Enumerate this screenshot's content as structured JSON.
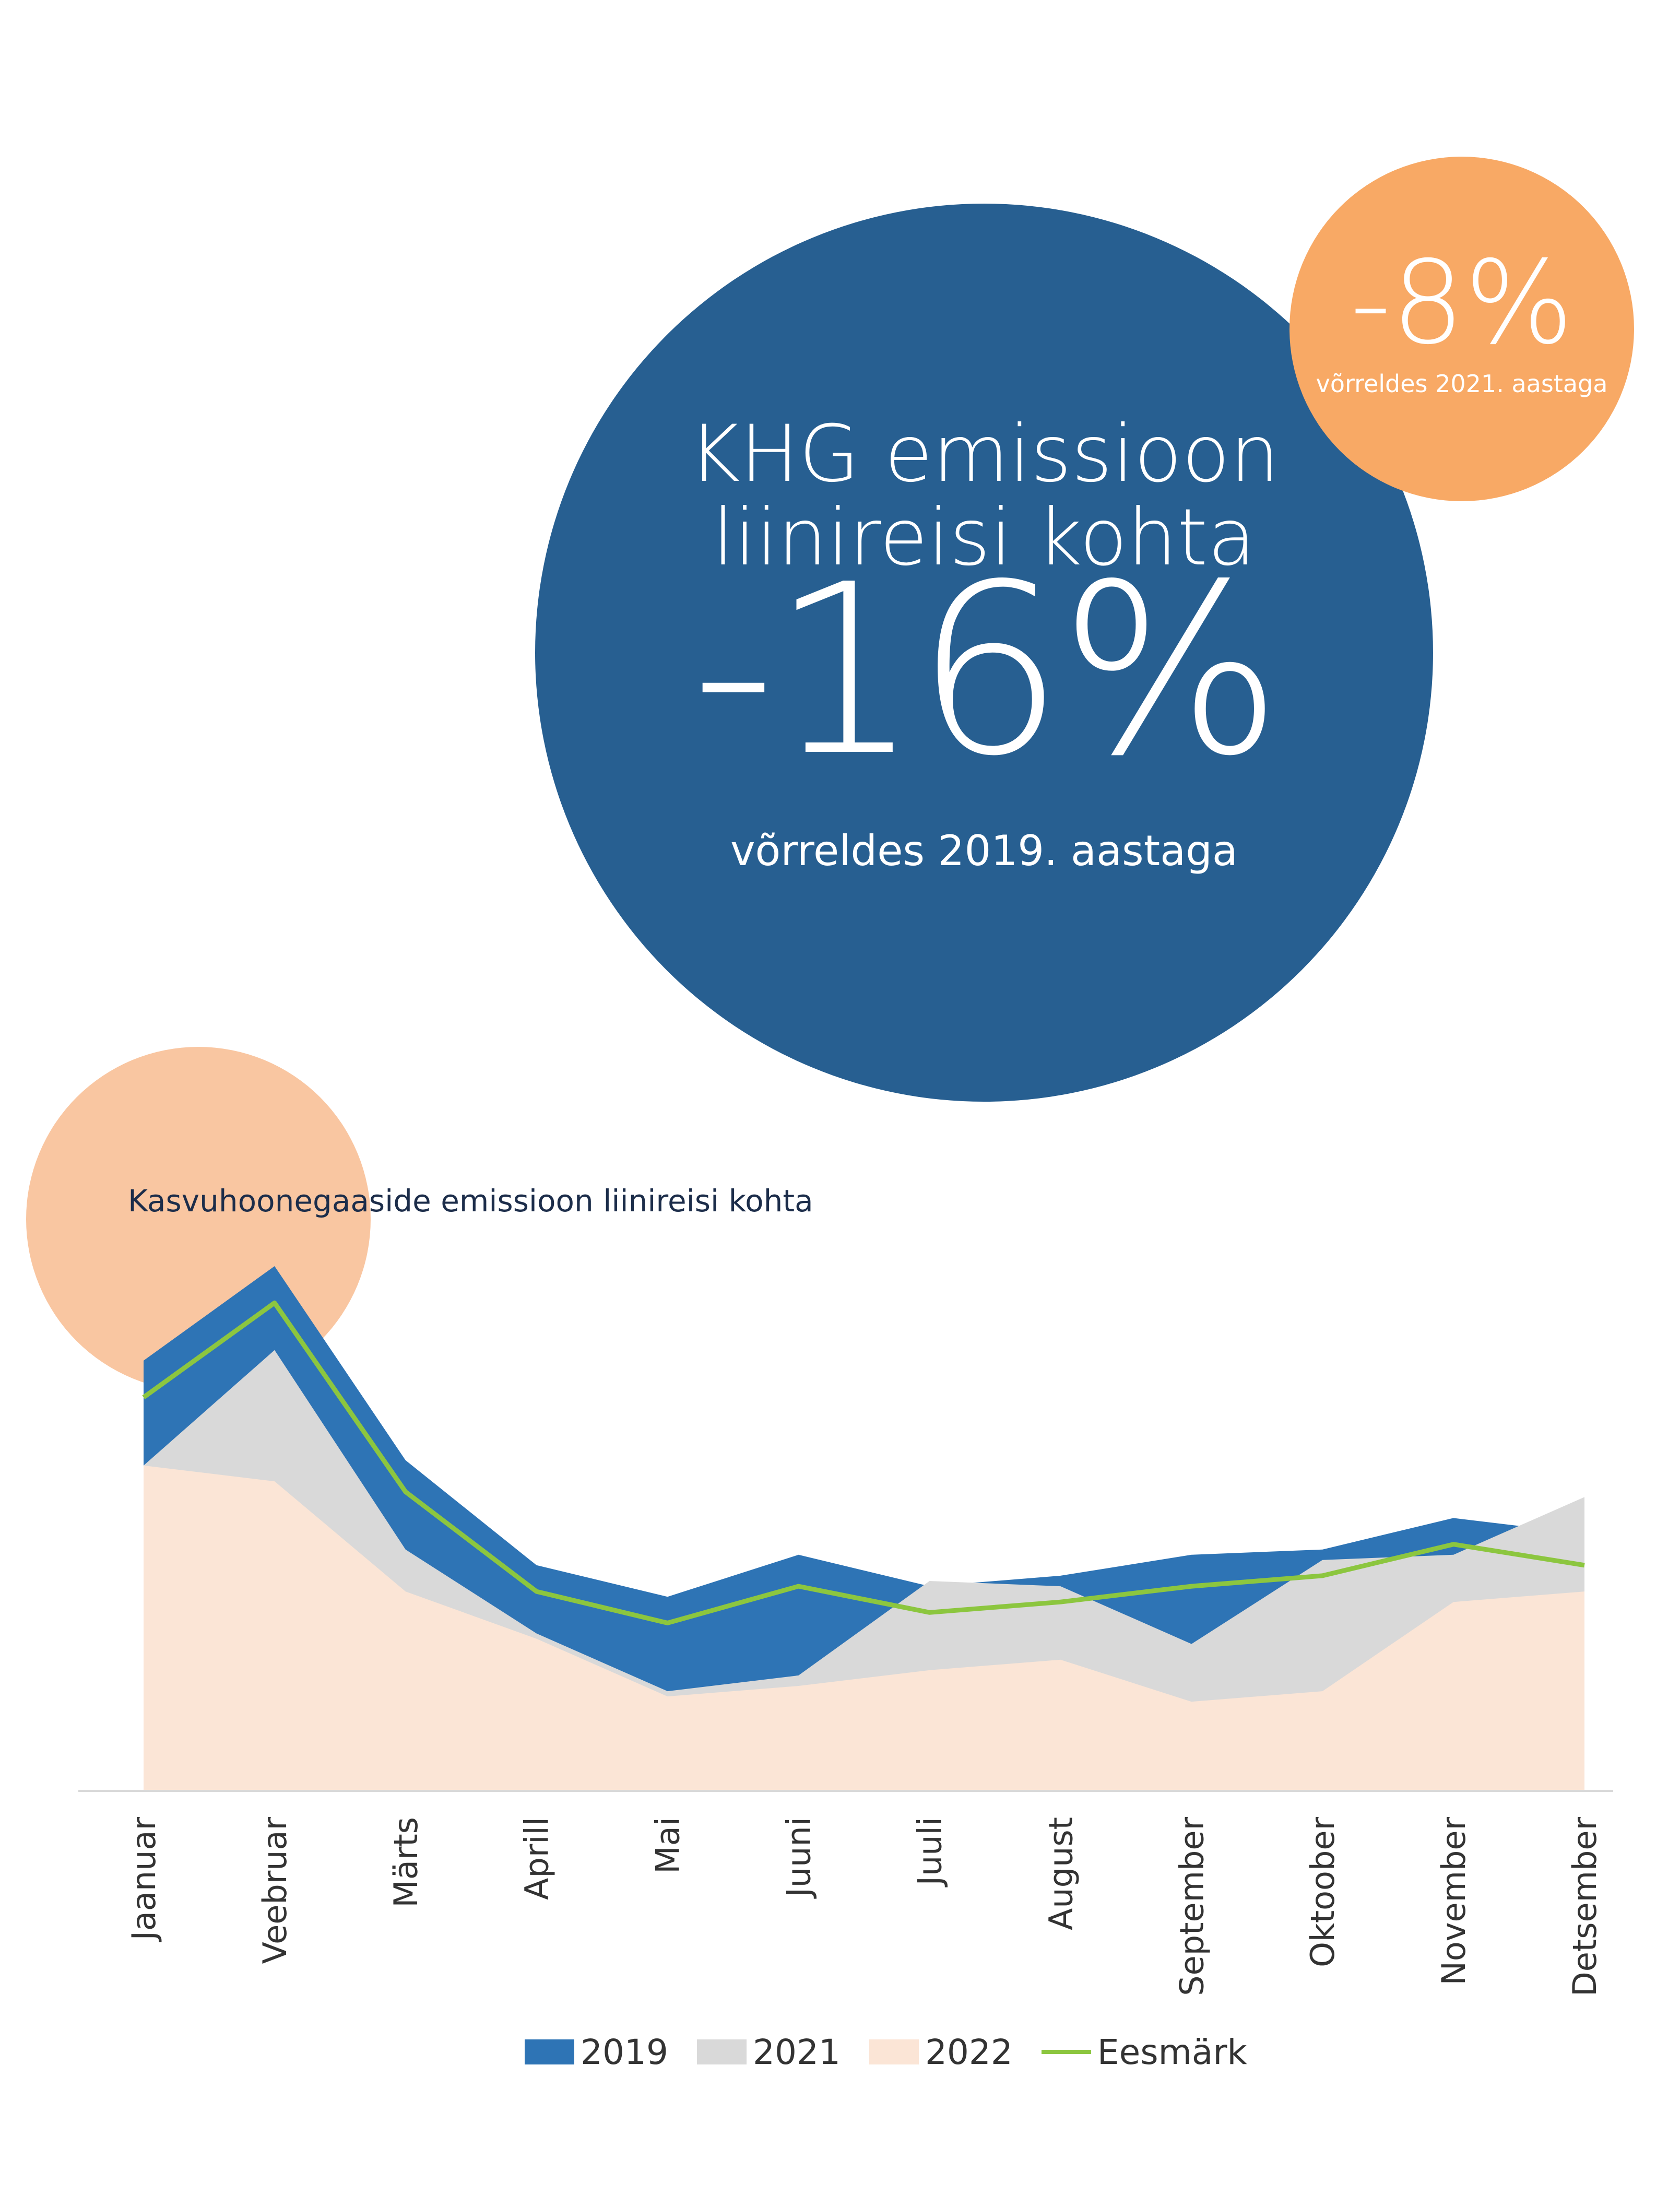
{
  "headline": {
    "title_line1": "KHG emissioon",
    "title_line2": "liinireisi kohta",
    "value": "-16%",
    "comparison": "võrreldes 2019. aastaga"
  },
  "secondary": {
    "value": "-8%",
    "comparison": "võrreldes 2021. aastaga"
  },
  "colors": {
    "big_circle": "#275f91",
    "small_circle": "#f8a965",
    "peach_circle": "#f9c6a1",
    "series_2019": "#2e74b5",
    "series_2021": "#d9d9d9",
    "series_2022": "#fbe5d6",
    "target_line": "#8cc63f"
  },
  "chart_data": {
    "type": "area",
    "title": "Kasvuhoonegaaside emissioon liinireisi kohta",
    "categories": [
      "Jaanuar",
      "Veebruar",
      "Märts",
      "Aprill",
      "Mai",
      "Juuni",
      "Juuli",
      "August",
      "September",
      "Oktoober",
      "November",
      "Detsember"
    ],
    "series": [
      {
        "name": "2019",
        "kind": "area",
        "values": [
          82,
          100,
          63,
          43,
          37,
          45,
          39,
          41,
          45,
          46,
          52,
          49
        ]
      },
      {
        "name": "2021",
        "kind": "area",
        "values": [
          62,
          84,
          46,
          30,
          19,
          22,
          40,
          39,
          28,
          44,
          45,
          56
        ]
      },
      {
        "name": "2022",
        "kind": "area",
        "values": [
          62,
          59,
          38,
          29,
          18,
          20,
          23,
          25,
          17,
          19,
          36,
          38
        ]
      },
      {
        "name": "Eesmärk",
        "kind": "line",
        "values": [
          75,
          93,
          57,
          38,
          32,
          39,
          34,
          36,
          39,
          41,
          47,
          43
        ]
      }
    ],
    "ylim": [
      0,
      100
    ],
    "grid": false,
    "legend": "bottom"
  }
}
